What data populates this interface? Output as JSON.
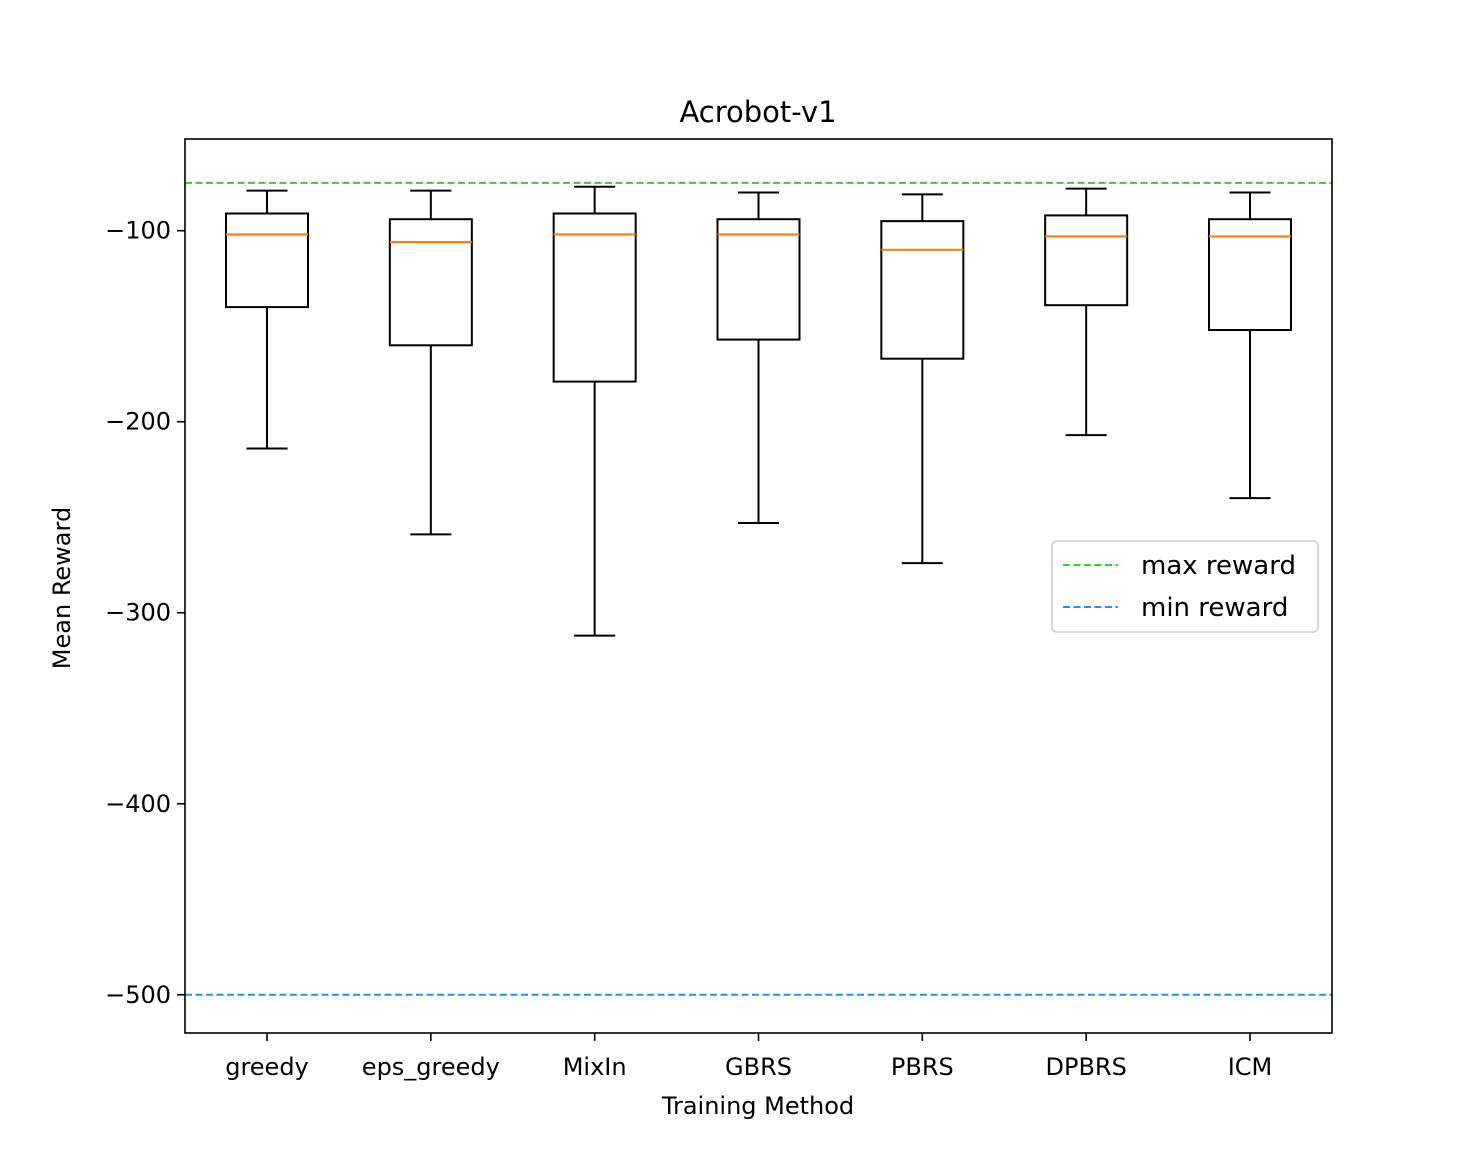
{
  "chart_data": {
    "type": "box",
    "title": "Acrobot-v1",
    "xlabel": "Training Method",
    "ylabel": "Mean Reward",
    "ylim": [
      -520,
      -52
    ],
    "yticks": [
      -100,
      -200,
      -300,
      -400,
      -500
    ],
    "ytick_labels": [
      "−100",
      "−200",
      "−300",
      "−400",
      "−500"
    ],
    "categories": [
      "greedy",
      "eps_greedy",
      "MixIn",
      "GBRS",
      "PBRS",
      "DPBRS",
      "ICM"
    ],
    "boxes": [
      {
        "whisker_low": -214,
        "q1": -140,
        "median": -102,
        "q3": -91,
        "whisker_high": -79
      },
      {
        "whisker_low": -259,
        "q1": -160,
        "median": -106,
        "q3": -94,
        "whisker_high": -79
      },
      {
        "whisker_low": -312,
        "q1": -179,
        "median": -102,
        "q3": -91,
        "whisker_high": -77
      },
      {
        "whisker_low": -253,
        "q1": -157,
        "median": -102,
        "q3": -94,
        "whisker_high": -80
      },
      {
        "whisker_low": -274,
        "q1": -167,
        "median": -110,
        "q3": -95,
        "whisker_high": -81
      },
      {
        "whisker_low": -207,
        "q1": -139,
        "median": -103,
        "q3": -92,
        "whisker_high": -78
      },
      {
        "whisker_low": -240,
        "q1": -152,
        "median": -103,
        "q3": -94,
        "whisker_high": -80
      }
    ],
    "reference_lines": [
      {
        "name": "max reward",
        "value": -75,
        "color": "#33cc33",
        "style": "dashed"
      },
      {
        "name": "min reward",
        "value": -500,
        "color": "#1e90ff",
        "style": "dashed"
      }
    ],
    "median_color": "#ff7f0e",
    "box_color": "#000000",
    "grid": false,
    "legend_position": "center-right"
  }
}
